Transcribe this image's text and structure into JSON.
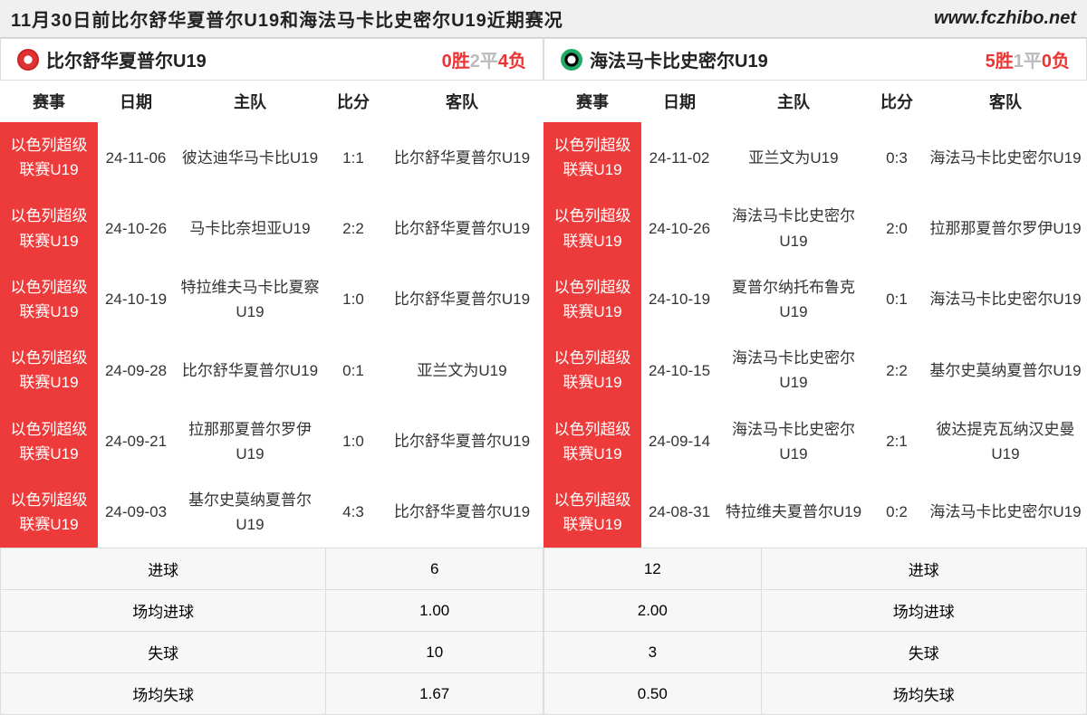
{
  "header": {
    "title": "11月30日前比尔舒华夏普尔U19和海法马卡比史密尔U19近期赛况",
    "url": "www.fczhibo.net"
  },
  "columns": [
    "赛事",
    "日期",
    "主队",
    "比分",
    "客队"
  ],
  "teamA": {
    "name": "比尔舒华夏普尔U19",
    "record": {
      "w": "0胜",
      "d": "2平",
      "l": "4负"
    },
    "matches": [
      {
        "comp": "以色列超级联赛U19",
        "date": "24-11-06",
        "home": "彼达迪华马卡比U19",
        "score": "1:1",
        "away": "比尔舒华夏普尔U19"
      },
      {
        "comp": "以色列超级联赛U19",
        "date": "24-10-26",
        "home": "马卡比奈坦亚U19",
        "score": "2:2",
        "away": "比尔舒华夏普尔U19"
      },
      {
        "comp": "以色列超级联赛U19",
        "date": "24-10-19",
        "home": "特拉维夫马卡比夏察U19",
        "score": "1:0",
        "away": "比尔舒华夏普尔U19"
      },
      {
        "comp": "以色列超级联赛U19",
        "date": "24-09-28",
        "home": "比尔舒华夏普尔U19",
        "score": "0:1",
        "away": "亚兰文为U19"
      },
      {
        "comp": "以色列超级联赛U19",
        "date": "24-09-21",
        "home": "拉那那夏普尔罗伊U19",
        "score": "1:0",
        "away": "比尔舒华夏普尔U19"
      },
      {
        "comp": "以色列超级联赛U19",
        "date": "24-09-03",
        "home": "基尔史莫纳夏普尔U19",
        "score": "4:3",
        "away": "比尔舒华夏普尔U19"
      }
    ],
    "stats": [
      {
        "label": "进球",
        "value": "6"
      },
      {
        "label": "场均进球",
        "value": "1.00"
      },
      {
        "label": "失球",
        "value": "10"
      },
      {
        "label": "场均失球",
        "value": "1.67"
      }
    ]
  },
  "teamB": {
    "name": "海法马卡比史密尔U19",
    "record": {
      "w": "5胜",
      "d": "1平",
      "l": "0负"
    },
    "matches": [
      {
        "comp": "以色列超级联赛U19",
        "date": "24-11-02",
        "home": "亚兰文为U19",
        "score": "0:3",
        "away": "海法马卡比史密尔U19"
      },
      {
        "comp": "以色列超级联赛U19",
        "date": "24-10-26",
        "home": "海法马卡比史密尔U19",
        "score": "2:0",
        "away": "拉那那夏普尔罗伊U19"
      },
      {
        "comp": "以色列超级联赛U19",
        "date": "24-10-19",
        "home": "夏普尔纳托布鲁克U19",
        "score": "0:1",
        "away": "海法马卡比史密尔U19"
      },
      {
        "comp": "以色列超级联赛U19",
        "date": "24-10-15",
        "home": "海法马卡比史密尔U19",
        "score": "2:2",
        "away": "基尔史莫纳夏普尔U19"
      },
      {
        "comp": "以色列超级联赛U19",
        "date": "24-09-14",
        "home": "海法马卡比史密尔U19",
        "score": "2:1",
        "away": "彼达提克瓦纳汉史曼U19"
      },
      {
        "comp": "以色列超级联赛U19",
        "date": "24-08-31",
        "home": "特拉维夫夏普尔U19",
        "score": "0:2",
        "away": "海法马卡比史密尔U19"
      }
    ],
    "stats": [
      {
        "label": "进球",
        "value": "12"
      },
      {
        "label": "场均进球",
        "value": "2.00"
      },
      {
        "label": "失球",
        "value": "3"
      },
      {
        "label": "场均失球",
        "value": "0.50"
      }
    ]
  }
}
